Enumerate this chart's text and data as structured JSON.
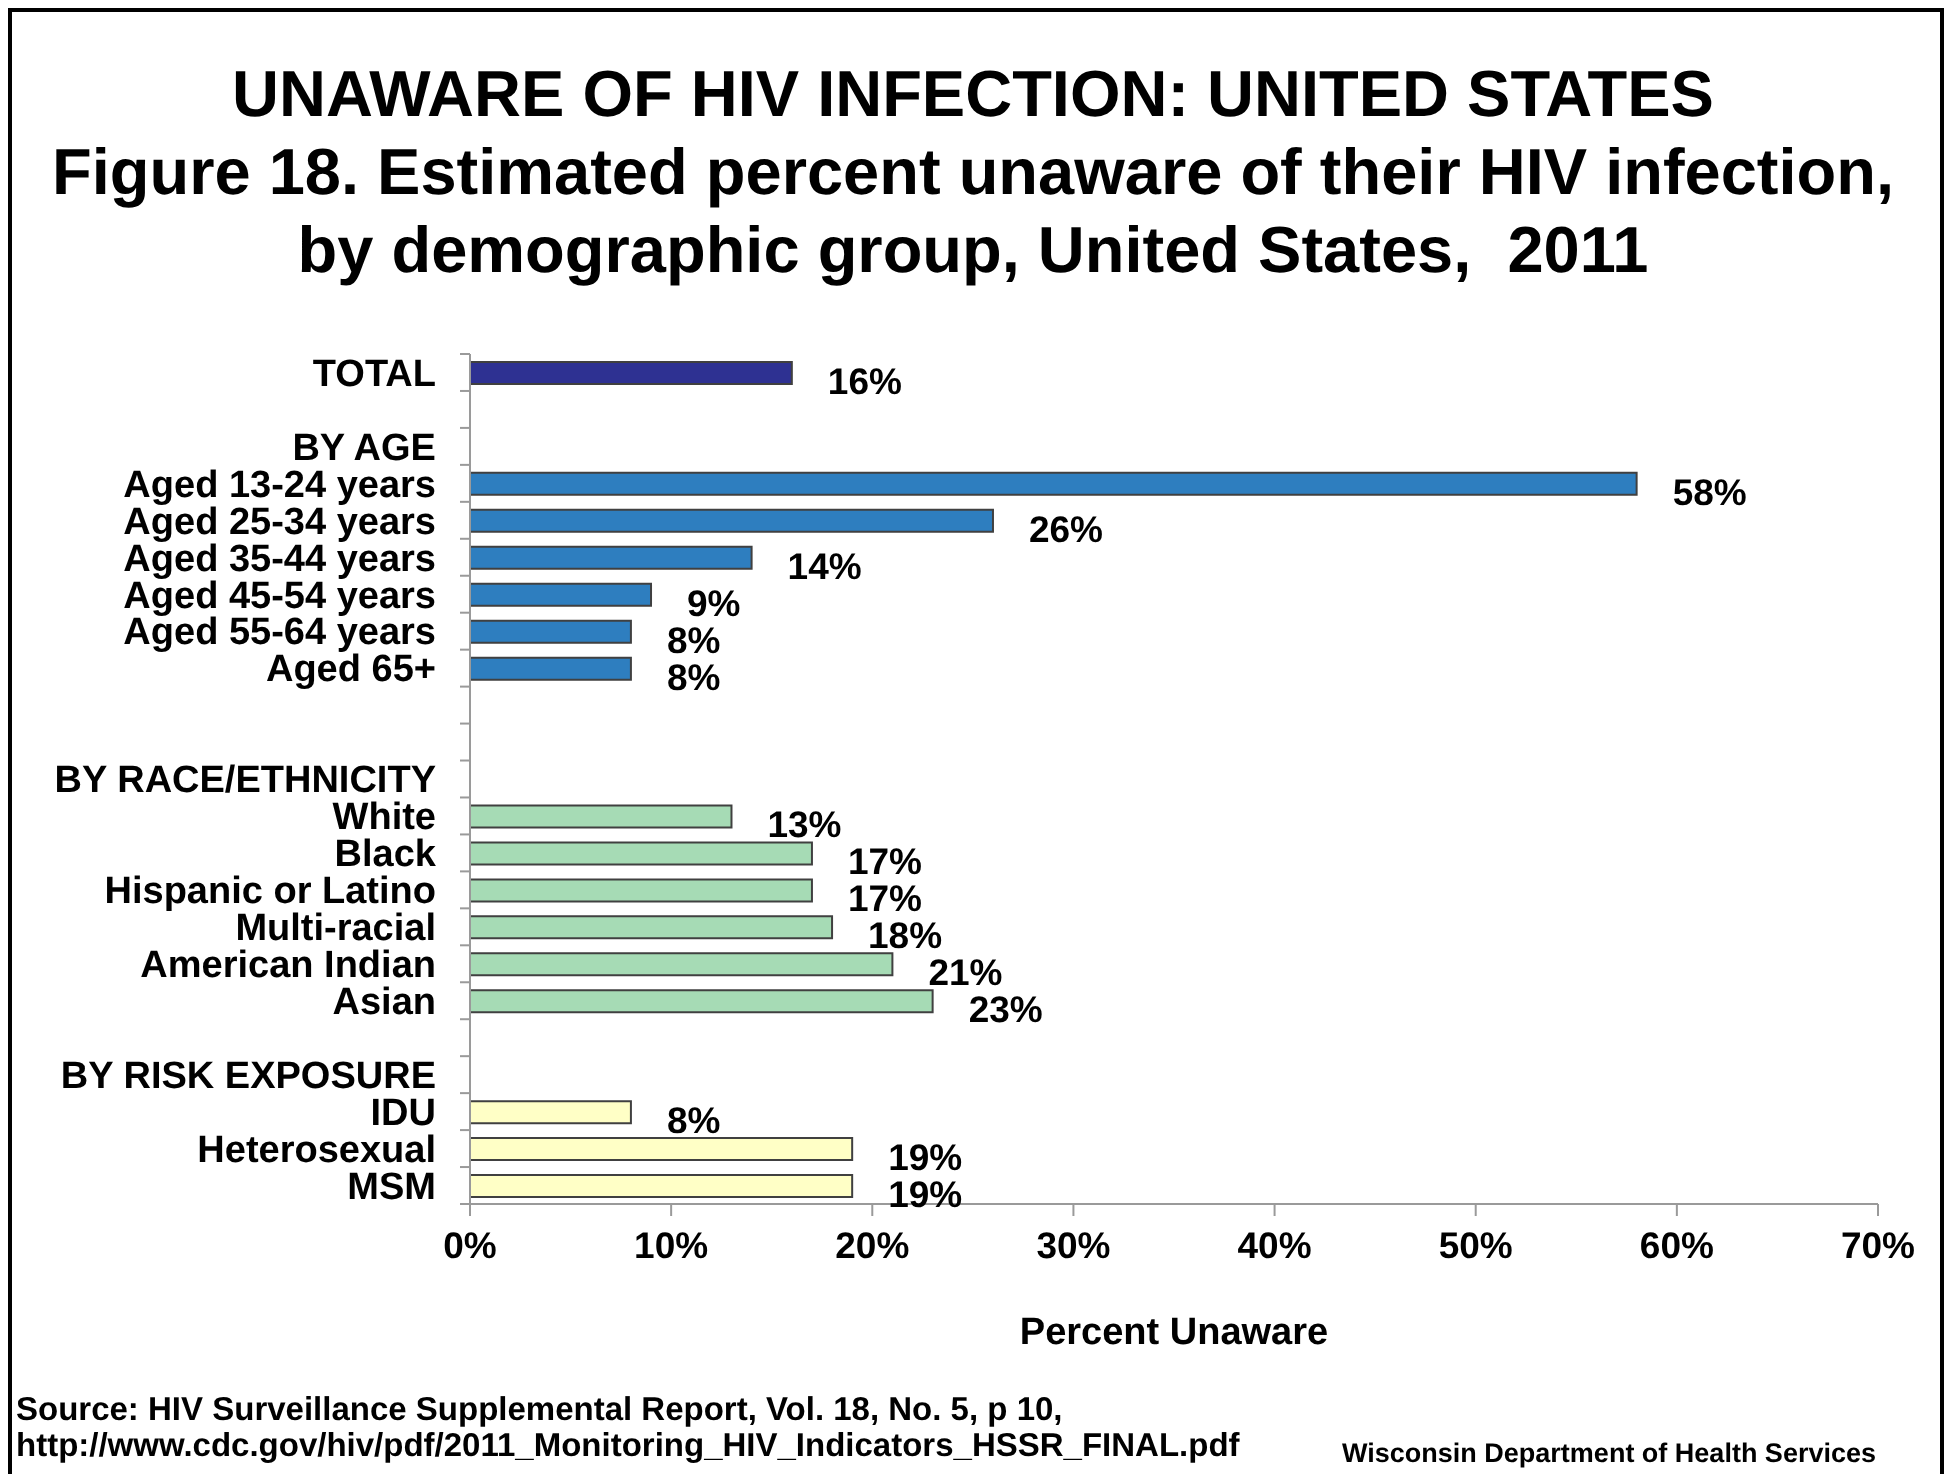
{
  "chart_data": {
    "type": "bar",
    "orientation": "horizontal",
    "title": "UNAWARE OF HIV INFECTION: UNITED STATES",
    "subtitle": "Figure 18. Estimated percent unaware of their HIV infection, by demographic group, United States,  2011",
    "xlabel": "Percent Unaware",
    "categories": [
      "TOTAL",
      null,
      "BY AGE",
      "Aged 13-24 years",
      "Aged 25-34 years",
      "Aged 35-44 years",
      "Aged 45-54 years",
      "Aged 55-64 years",
      "Aged 65+",
      null,
      null,
      "BY RACE/ETHNICITY",
      "White",
      "Black",
      "Hispanic or Latino",
      "Multi-racial",
      "American Indian",
      "Asian",
      null,
      "BY RISK EXPOSURE",
      "IDU",
      "Heterosexual",
      "MSM"
    ],
    "values": [
      16,
      null,
      null,
      58,
      26,
      14,
      9,
      8,
      8,
      null,
      null,
      null,
      13,
      17,
      17,
      18,
      21,
      23,
      null,
      null,
      8,
      19,
      19
    ],
    "colors": [
      "#2e3192",
      null,
      null,
      "#2e7ebf",
      "#2e7ebf",
      "#2e7ebf",
      "#2e7ebf",
      "#2e7ebf",
      "#2e7ebf",
      null,
      null,
      null,
      "#a6dbb5",
      "#a6dbb5",
      "#a6dbb5",
      "#a6dbb5",
      "#a6dbb5",
      "#a6dbb5",
      null,
      null,
      "#ffffc6",
      "#ffffc6",
      "#ffffc6"
    ],
    "value_labels": [
      "16%",
      null,
      null,
      "58%",
      "26%",
      "14%",
      "9%",
      "8%",
      "8%",
      null,
      null,
      null,
      "13%",
      "17%",
      "17%",
      "18%",
      "21%",
      "23%",
      null,
      null,
      "8%",
      "19%",
      "19%"
    ],
    "xlim": [
      0,
      70
    ],
    "xticks": [
      {
        "value": 0,
        "label": "0%"
      },
      {
        "value": 10,
        "label": "10%"
      },
      {
        "value": 20,
        "label": "20%"
      },
      {
        "value": 30,
        "label": "30%"
      },
      {
        "value": 40,
        "label": "40%"
      },
      {
        "value": 50,
        "label": "50%"
      },
      {
        "value": 60,
        "label": "60%"
      },
      {
        "value": 70,
        "label": "70%"
      }
    ],
    "annotations": [
      "Source: HIV Surveillance Supplemental Report, Vol. 18, No. 5, p 10,",
      "http://www.cdc.gov/hiv/pdf/2011_Monitoring_HIV_Indicators_HSSR_FINAL.pdf",
      "Wisconsin Department of Health Services"
    ]
  }
}
